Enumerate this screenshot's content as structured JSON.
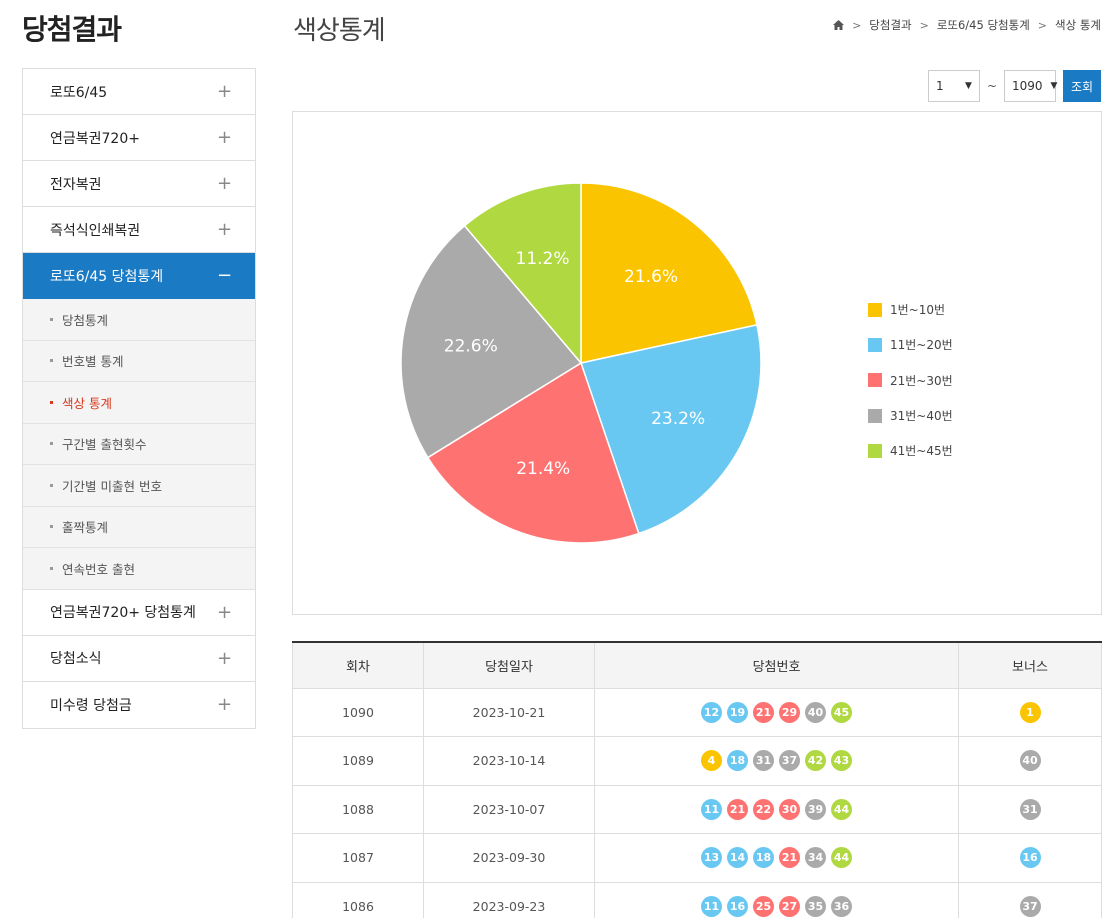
{
  "sidebar": {
    "title": "당첨결과",
    "menu": [
      {
        "label": "로또6/45",
        "toggle": "+"
      },
      {
        "label": "연금복권720+",
        "toggle": "+"
      },
      {
        "label": "전자복권",
        "toggle": "+"
      },
      {
        "label": "즉석식인쇄복권",
        "toggle": "+"
      },
      {
        "label": "로또6/45 당첨통계",
        "toggle": "−"
      },
      {
        "label": "연금복권720+ 당첨통계",
        "toggle": "+"
      },
      {
        "label": "당첨소식",
        "toggle": "+"
      },
      {
        "label": "미수령 당첨금",
        "toggle": "+"
      }
    ],
    "submenu": [
      "당첨통계",
      "번호별 통계",
      "색상 통계",
      "구간별 출현횟수",
      "기간별 미출현 번호",
      "홀짝통계",
      "연속번호 출현"
    ]
  },
  "header": {
    "title": "색상통계",
    "breadcrumb": [
      "당첨결과",
      "로또6/45 당첨통계",
      "색상 통계"
    ]
  },
  "filter": {
    "from": "1",
    "tilde": "~",
    "to": "1090",
    "query_label": "조회"
  },
  "colors": {
    "yellow": "#fbc400",
    "blue": "#69c8f2",
    "red": "#ff7272",
    "gray": "#aaaaaa",
    "green": "#b0d840"
  },
  "chart_data": {
    "type": "pie",
    "slices": [
      {
        "label": "1번~10번",
        "value": 21.6,
        "display": "21.6%",
        "color": "#fbc400"
      },
      {
        "label": "11번~20번",
        "value": 23.2,
        "display": "23.2%",
        "color": "#69c8f2"
      },
      {
        "label": "21번~30번",
        "value": 21.4,
        "display": "21.4%",
        "color": "#ff7272"
      },
      {
        "label": "31번~40번",
        "value": 22.6,
        "display": "22.6%",
        "color": "#aaaaaa"
      },
      {
        "label": "41번~45번",
        "value": 11.2,
        "display": "11.2%",
        "color": "#b0d840"
      }
    ],
    "legend_position": "right"
  },
  "table": {
    "headers": [
      "회차",
      "당첨일자",
      "당첨번호",
      "보너스"
    ],
    "rows": [
      {
        "round": "1090",
        "date": "2023-10-21",
        "numbers": [
          12,
          19,
          21,
          29,
          40,
          45
        ],
        "bonus": 1
      },
      {
        "round": "1089",
        "date": "2023-10-14",
        "numbers": [
          4,
          18,
          31,
          37,
          42,
          43
        ],
        "bonus": 40
      },
      {
        "round": "1088",
        "date": "2023-10-07",
        "numbers": [
          11,
          21,
          22,
          30,
          39,
          44
        ],
        "bonus": 31
      },
      {
        "round": "1087",
        "date": "2023-09-30",
        "numbers": [
          13,
          14,
          18,
          21,
          34,
          44
        ],
        "bonus": 16
      },
      {
        "round": "1086",
        "date": "2023-09-23",
        "numbers": [
          11,
          16,
          25,
          27,
          35,
          36
        ],
        "bonus": 37
      }
    ]
  }
}
